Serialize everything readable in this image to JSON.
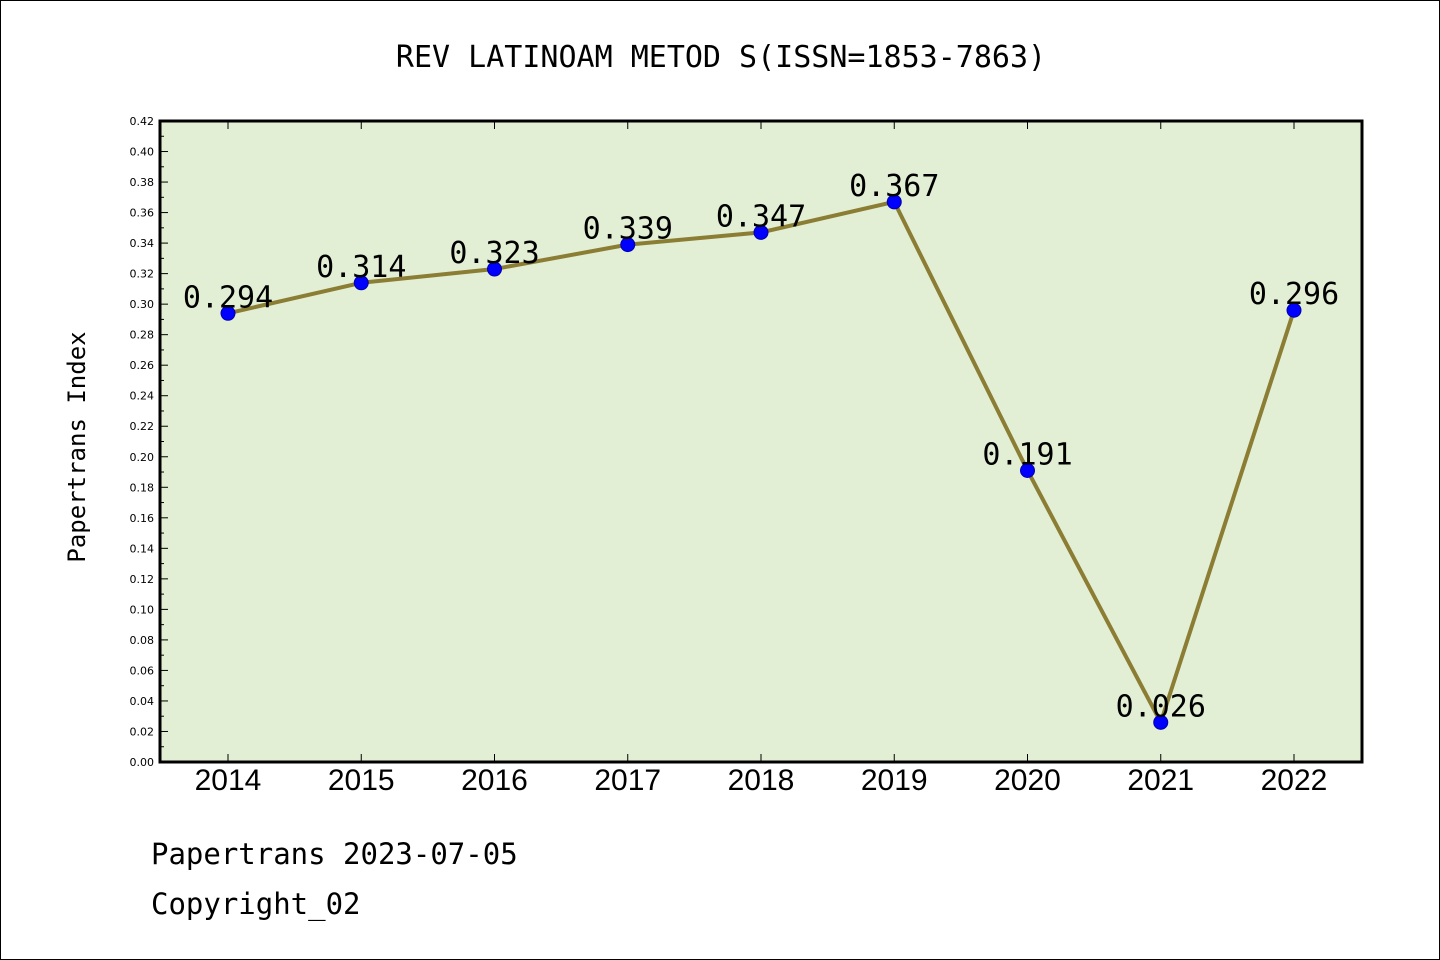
{
  "chart_data": {
    "type": "line",
    "title": "REV LATINOAM METOD S(ISSN=1853-7863)",
    "xlabel": "",
    "ylabel": "Papertrans Index",
    "categories": [
      "2014",
      "2015",
      "2016",
      "2017",
      "2018",
      "2019",
      "2020",
      "2021",
      "2022"
    ],
    "series": [
      {
        "values": [
          0.294,
          0.314,
          0.323,
          0.339,
          0.347,
          0.367,
          0.191,
          0.026,
          0.296
        ],
        "data_labels": [
          "0.294",
          "0.314",
          "0.323",
          "0.339",
          "0.347",
          "0.367",
          "0.191",
          "0.026",
          "0.296"
        ]
      }
    ],
    "ylim": [
      0,
      0.42
    ],
    "yticks": [
      "0.00",
      "0.02",
      "0.04",
      "0.06",
      "0.08",
      "0.10",
      "0.12",
      "0.14",
      "0.16",
      "0.18",
      "0.20",
      "0.22",
      "0.24",
      "0.26",
      "0.28",
      "0.30",
      "0.32",
      "0.34",
      "0.36",
      "0.38",
      "0.40",
      "0.42"
    ],
    "grid": false,
    "legend": "none",
    "colors": {
      "plot_background": "#e2efd4",
      "line": "#8b7d34",
      "marker": "#0000ff"
    }
  },
  "footer": {
    "line1": "Papertrans 2023-07-05",
    "line2": "Copyright_02"
  }
}
